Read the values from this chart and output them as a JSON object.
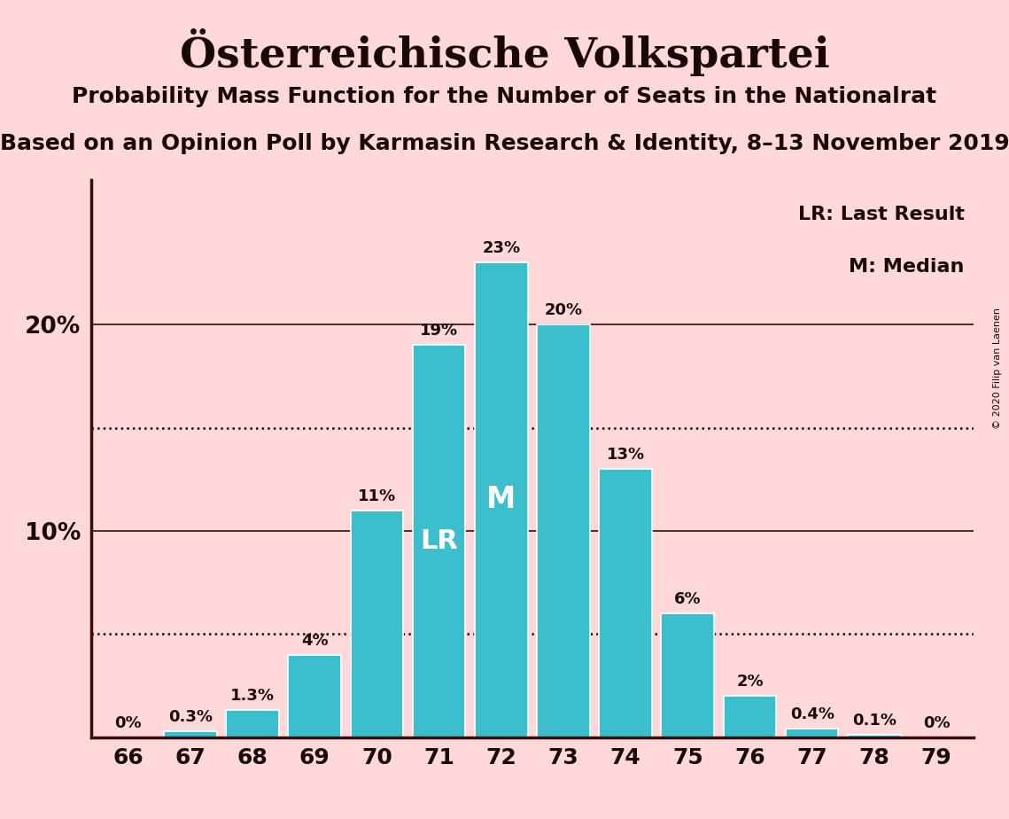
{
  "title": "Österreichische Volkspartei",
  "subtitle1": "Probability Mass Function for the Number of Seats in the Nationalrat",
  "subtitle2": "Based on an Opinion Poll by Karmasin Research & Identity, 8–13 November 2019",
  "copyright": "© 2020 Filip van Laenen",
  "categories": [
    66,
    67,
    68,
    69,
    70,
    71,
    72,
    73,
    74,
    75,
    76,
    77,
    78,
    79
  ],
  "values": [
    0.0,
    0.3,
    1.3,
    4.0,
    11.0,
    19.0,
    23.0,
    20.0,
    13.0,
    6.0,
    2.0,
    0.4,
    0.1,
    0.0
  ],
  "labels": [
    "0%",
    "0.3%",
    "1.3%",
    "4%",
    "11%",
    "19%",
    "23%",
    "20%",
    "13%",
    "6%",
    "2%",
    "0.4%",
    "0.1%",
    "0%"
  ],
  "bar_color": "#3bbfcc",
  "background_color": "#ffd9d9",
  "text_color": "#1a0808",
  "lr_index": 5,
  "median_index": 6,
  "lr_label": "LR",
  "median_label": "M",
  "legend_lr": "LR: Last Result",
  "legend_m": "M: Median",
  "dotted_line_values": [
    5.0,
    15.0
  ],
  "solid_line_values": [
    10.0,
    20.0
  ],
  "ylim": [
    0,
    27
  ],
  "title_fontsize": 34,
  "subtitle1_fontsize": 18,
  "subtitle2_fontsize": 18,
  "axis_color": "#3d0a0a"
}
